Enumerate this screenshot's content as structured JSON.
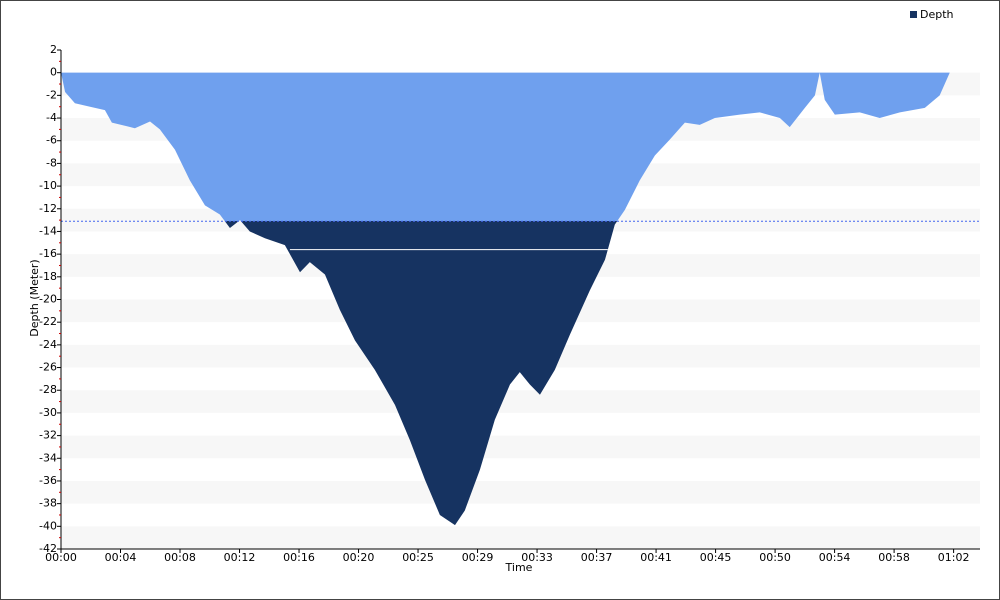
{
  "chart_data": {
    "type": "area",
    "legend": "Depth",
    "legend_position": "top-right",
    "x_label": "Time",
    "y_label": "Depth (Meter)",
    "color": "#6fa0ee",
    "deep_color": "#163361",
    "threshold": -13.1,
    "average_depth": -15.6,
    "average_depth_x": [
      954,
      2279
    ],
    "xlim": [
      0,
      3830
    ],
    "ylim": [
      -42,
      2
    ],
    "xticks": [
      {
        "value": 0,
        "label": "00:00"
      },
      {
        "value": 248,
        "label": "00:04"
      },
      {
        "value": 496,
        "label": "00:08"
      },
      {
        "value": 744,
        "label": "00:12"
      },
      {
        "value": 992,
        "label": "00:16"
      },
      {
        "value": 1240,
        "label": "00:20"
      },
      {
        "value": 1488,
        "label": "00:25"
      },
      {
        "value": 1736,
        "label": "00:29"
      },
      {
        "value": 1984,
        "label": "00:33"
      },
      {
        "value": 2232,
        "label": "00:37"
      },
      {
        "value": 2480,
        "label": "00:41"
      },
      {
        "value": 2728,
        "label": "00:45"
      },
      {
        "value": 2976,
        "label": "00:50"
      },
      {
        "value": 3224,
        "label": "00:54"
      },
      {
        "value": 3472,
        "label": "00:58"
      },
      {
        "value": 3720,
        "label": "01:02"
      }
    ],
    "yticks": [
      2,
      0,
      -2,
      -4,
      -6,
      -8,
      -10,
      -12,
      -14,
      -16,
      -18,
      -20,
      -22,
      -24,
      -26,
      -28,
      -30,
      -32,
      -34,
      -36,
      -38,
      -40,
      -42
    ],
    "x": [
      0,
      17,
      58,
      121,
      183,
      212,
      308,
      371,
      412,
      475,
      537,
      600,
      662,
      704,
      746,
      787,
      850,
      933,
      996,
      1037,
      1100,
      1162,
      1225,
      1308,
      1392,
      1454,
      1517,
      1579,
      1642,
      1683,
      1746,
      1808,
      1871,
      1912,
      1954,
      1996,
      2058,
      2121,
      2204,
      2267,
      2308,
      2350,
      2412,
      2475,
      2537,
      2600,
      2662,
      2725,
      2829,
      2912,
      2996,
      3037,
      3100,
      3142,
      3162,
      3183,
      3225,
      3329,
      3412,
      3496,
      3600,
      3662,
      3704
    ],
    "values": [
      0,
      -1.7,
      -2.7,
      -3,
      -3.3,
      -4.4,
      -4.9,
      -4.3,
      -5,
      -6.8,
      -9.5,
      -11.7,
      -12.5,
      -13.7,
      -13,
      -14,
      -14.6,
      -15.2,
      -17.6,
      -16.7,
      -17.8,
      -20.9,
      -23.6,
      -26.2,
      -29.3,
      -32.4,
      -35.9,
      -39,
      -39.9,
      -38.6,
      -35,
      -30.6,
      -27.5,
      -26.4,
      -27.5,
      -28.4,
      -26.2,
      -23.1,
      -19.2,
      -16.5,
      -13.4,
      -12.1,
      -9.5,
      -7.3,
      -5.9,
      -4.4,
      -4.6,
      -4,
      -3.7,
      -3.5,
      -4,
      -4.8,
      -3.1,
      -2,
      0,
      -2.4,
      -3.7,
      -3.5,
      -4,
      -3.5,
      -3.1,
      -2,
      0
    ]
  }
}
